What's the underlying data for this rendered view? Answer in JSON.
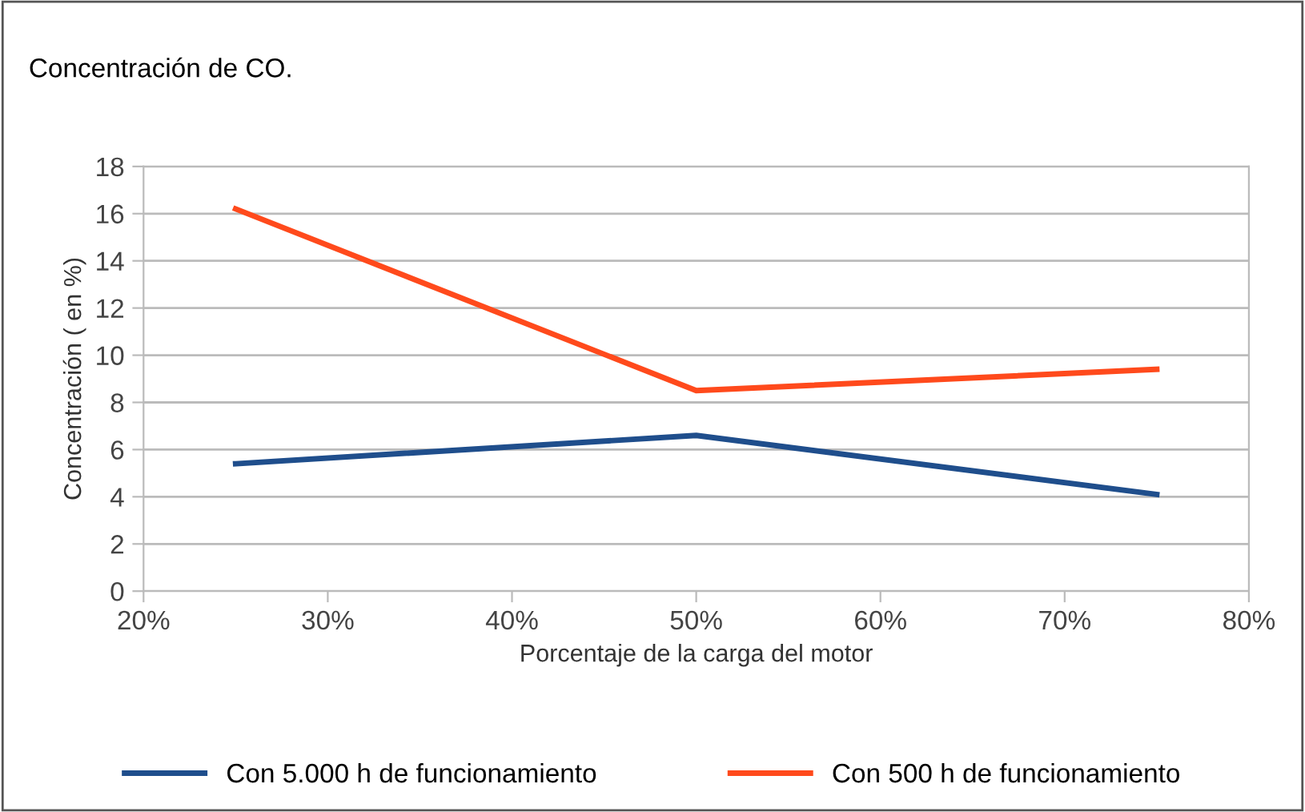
{
  "chart_data": {
    "type": "line",
    "title": "Concentración de CO.",
    "xlabel": "Porcentaje de la carga del motor",
    "ylabel": "Concentración ( en %)",
    "x": [
      25,
      50,
      75
    ],
    "series": [
      {
        "name": "Con 5.000 h de funcionamiento",
        "color": "#1f4e8c",
        "values": [
          5.4,
          6.6,
          4.1
        ]
      },
      {
        "name": "Con 500 h de funcionamiento",
        "color": "#ff4a1c",
        "values": [
          16.2,
          8.5,
          9.4
        ]
      }
    ],
    "xlim": [
      20,
      80
    ],
    "xticks": [
      {
        "value": 20,
        "label": "20%"
      },
      {
        "value": 30,
        "label": "30%"
      },
      {
        "value": 40,
        "label": "40%"
      },
      {
        "value": 50,
        "label": "50%"
      },
      {
        "value": 60,
        "label": "60%"
      },
      {
        "value": 70,
        "label": "70%"
      },
      {
        "value": 80,
        "label": "80%"
      }
    ],
    "ylim": [
      0,
      18
    ],
    "yticks": [
      0,
      2,
      4,
      6,
      8,
      10,
      12,
      14,
      16,
      18
    ],
    "grid": "y",
    "legend": "bottom",
    "marker": "none",
    "line_style": "solid"
  }
}
